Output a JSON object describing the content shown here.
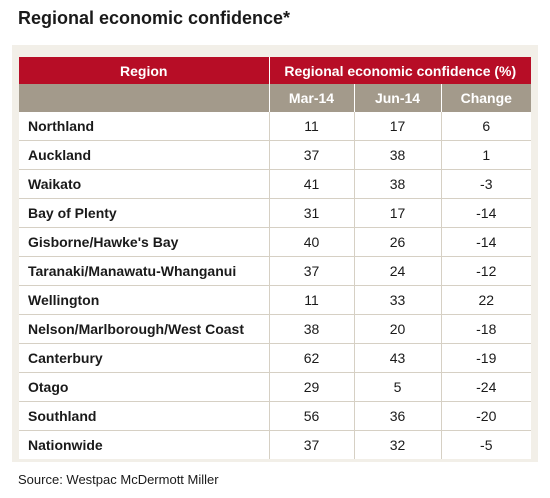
{
  "title": "Regional economic confidence*",
  "table": {
    "region_header": "Region",
    "group_header": "Regional economic confidence (%)",
    "columns": [
      "Mar-14",
      "Jun-14",
      "Change"
    ],
    "rows": [
      {
        "region": "Northland",
        "mar": "11",
        "jun": "17",
        "change": "6"
      },
      {
        "region": "Auckland",
        "mar": "37",
        "jun": "38",
        "change": "1"
      },
      {
        "region": "Waikato",
        "mar": "41",
        "jun": "38",
        "change": "-3"
      },
      {
        "region": "Bay of Plenty",
        "mar": "31",
        "jun": "17",
        "change": "-14"
      },
      {
        "region": "Gisborne/Hawke's Bay",
        "mar": "40",
        "jun": "26",
        "change": "-14"
      },
      {
        "region": "Taranaki/Manawatu-Whanganui",
        "mar": "37",
        "jun": "24",
        "change": "-12"
      },
      {
        "region": "Wellington",
        "mar": "11",
        "jun": "33",
        "change": "22"
      },
      {
        "region": "Nelson/Marlborough/West Coast",
        "mar": "38",
        "jun": "20",
        "change": "-18"
      },
      {
        "region": "Canterbury",
        "mar": "62",
        "jun": "43",
        "change": "-19"
      },
      {
        "region": "Otago",
        "mar": "29",
        "jun": "5",
        "change": "-24"
      },
      {
        "region": "Southland",
        "mar": "56",
        "jun": "36",
        "change": "-20"
      },
      {
        "region": "Nationwide",
        "mar": "37",
        "jun": "32",
        "change": "-5"
      }
    ]
  },
  "source": "Source: Westpac McDermott Miller",
  "colors": {
    "header_red": "#b70d26",
    "subheader_taupe": "#a39a8b",
    "panel_beige": "#f2efe8"
  }
}
